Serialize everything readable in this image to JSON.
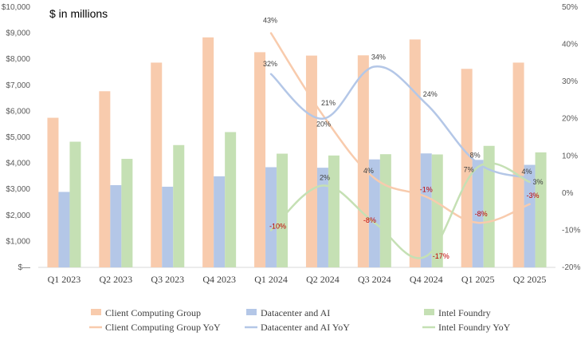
{
  "chart_data": {
    "type": "bar",
    "title": "$ in millions",
    "categories": [
      "Q1 2023",
      "Q2 2023",
      "Q3 2023",
      "Q4 2023",
      "Q1 2024",
      "Q2 2024",
      "Q3 2024",
      "Q4 2024",
      "Q1 2025",
      "Q2 2025"
    ],
    "left_axis": {
      "ylim": [
        0,
        10000
      ],
      "ticks": [
        0,
        1000,
        2000,
        3000,
        4000,
        5000,
        6000,
        7000,
        8000,
        9000,
        10000
      ],
      "tick_labels": [
        "$—",
        "$1,000",
        "$2,000",
        "$3,000",
        "$4,000",
        "$5,000",
        "$6,000",
        "$7,000",
        "$8,000",
        "$9,000",
        "$10,000"
      ]
    },
    "right_axis": {
      "ylim": [
        -20,
        50
      ],
      "ticks": [
        -20,
        -10,
        0,
        10,
        20,
        30,
        40,
        50
      ],
      "tick_labels": [
        "-20%",
        "-10%",
        "0%",
        "10%",
        "20%",
        "30%",
        "40%",
        "50%"
      ]
    },
    "series": [
      {
        "name": "Client Computing Group",
        "kind": "bar",
        "color": "#f8cbad",
        "values": [
          5750,
          6770,
          7870,
          8840,
          8270,
          8140,
          8150,
          8760,
          7630,
          7870
        ]
      },
      {
        "name": "Datacenter and AI",
        "kind": "bar",
        "color": "#b4c7e7",
        "values": [
          2900,
          3160,
          3100,
          3500,
          3850,
          3830,
          4150,
          4380,
          4130,
          3940
        ]
      },
      {
        "name": "Intel Foundry",
        "kind": "bar",
        "color": "#c5e0b4",
        "values": [
          4830,
          4170,
          4700,
          5200,
          4370,
          4300,
          4350,
          4340,
          4670,
          4420
        ]
      },
      {
        "name": "Client Computing Group YoY",
        "kind": "line",
        "color": "#f8cbad",
        "axis": "right",
        "x": [
          "Q1 2024",
          "Q2 2024",
          "Q3 2024",
          "Q4 2024",
          "Q1 2025",
          "Q2 2025"
        ],
        "values": [
          43,
          21,
          4,
          -1,
          -8,
          -3
        ],
        "labels": [
          "43%",
          "21%",
          "4%",
          "-1%",
          "-8%",
          "-3%"
        ]
      },
      {
        "name": "Datacenter and AI YoY",
        "kind": "line",
        "color": "#b4c7e7",
        "axis": "right",
        "x": [
          "Q1 2024",
          "Q2 2024",
          "Q3 2024",
          "Q4 2024",
          "Q1 2025",
          "Q2 2025"
        ],
        "values": [
          32,
          20,
          34,
          24,
          8,
          4
        ],
        "labels": [
          "32%",
          "20%",
          "34%",
          "24%",
          "8%",
          "4%"
        ]
      },
      {
        "name": "Intel Foundry YoY",
        "kind": "line",
        "color": "#c5e0b4",
        "axis": "right",
        "x": [
          "Q1 2024",
          "Q2 2024",
          "Q3 2024",
          "Q4 2024",
          "Q1 2025",
          "Q2 2025"
        ],
        "values": [
          -10,
          2,
          -8,
          -17,
          7,
          3
        ],
        "labels": [
          "-10%",
          "2%",
          "-8%",
          "-17%",
          "7%",
          "3%"
        ]
      }
    ],
    "negative_label_color": "#c00000",
    "grid": false,
    "legend_position": "bottom"
  }
}
